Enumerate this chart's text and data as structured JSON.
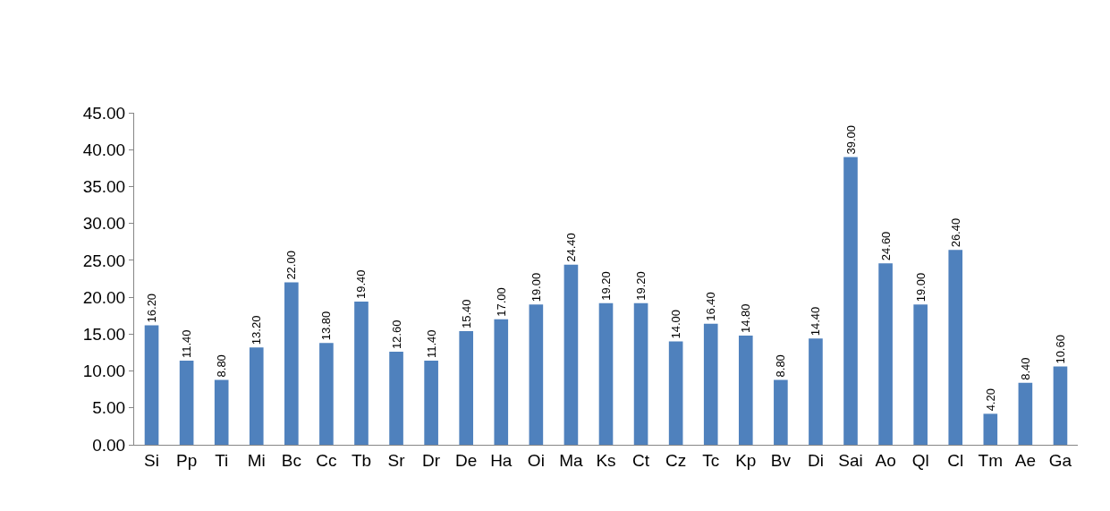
{
  "chart_data": {
    "type": "bar",
    "categories": [
      "Si",
      "Pp",
      "Ti",
      "Mi",
      "Bc",
      "Cc",
      "Tb",
      "Sr",
      "Dr",
      "De",
      "Ha",
      "Oi",
      "Ma",
      "Ks",
      "Ct",
      "Cz",
      "Tc",
      "Kp",
      "Bv",
      "Di",
      "Sai",
      "Ao",
      "Ql",
      "Cl",
      "Tm",
      "Ae",
      "Ga"
    ],
    "values": [
      16.2,
      11.4,
      8.8,
      13.2,
      22.0,
      13.8,
      19.4,
      12.6,
      11.4,
      15.4,
      17.0,
      19.0,
      24.4,
      19.2,
      19.2,
      14.0,
      16.4,
      14.8,
      8.8,
      14.4,
      39.0,
      24.6,
      19.0,
      26.4,
      4.2,
      8.4,
      10.6
    ],
    "value_labels": [
      "16.20",
      "11.40",
      "8.80",
      "13.20",
      "22.00",
      "13.80",
      "19.40",
      "12.60",
      "11.40",
      "15.40",
      "17.00",
      "19.00",
      "24.40",
      "19.20",
      "19.20",
      "14.00",
      "16.40",
      "14.80",
      "8.80",
      "14.40",
      "39.00",
      "24.60",
      "19.00",
      "26.40",
      "4.20",
      "8.40",
      "10.60"
    ],
    "color": "#4f81bd",
    "ylim": [
      0,
      45
    ],
    "yticks": [
      {
        "value": 0,
        "label": "0.00"
      },
      {
        "value": 5,
        "label": "5.00"
      },
      {
        "value": 10,
        "label": "10.00"
      },
      {
        "value": 15,
        "label": "15.00"
      },
      {
        "value": 20,
        "label": "20.00"
      },
      {
        "value": 25,
        "label": "25.00"
      },
      {
        "value": 30,
        "label": "30.00"
      },
      {
        "value": 35,
        "label": "35.00"
      },
      {
        "value": 40,
        "label": "40.00"
      },
      {
        "value": 45,
        "label": "45.00"
      }
    ],
    "grid": false
  }
}
